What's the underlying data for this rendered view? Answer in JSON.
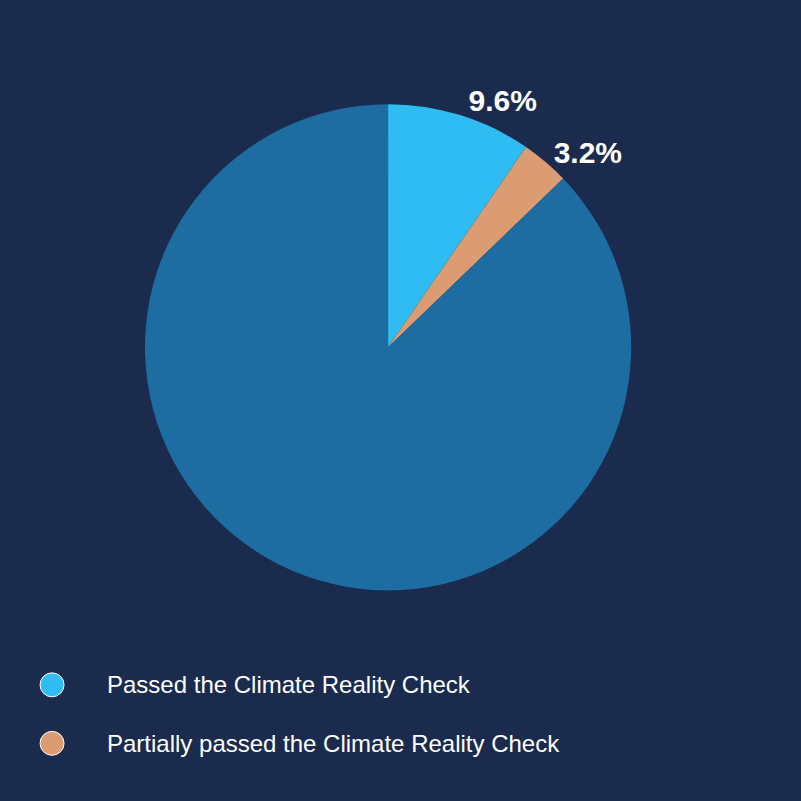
{
  "chart_data": {
    "type": "pie",
    "categories": [
      "Passed the Climate Reality Check",
      "Partially passed the Climate Reality Check",
      null
    ],
    "values": [
      9.6,
      3.2,
      87.2
    ],
    "value_labels": [
      "9.6%",
      "3.2%",
      null
    ],
    "colors": [
      "#2fbcf2",
      "#dc9c72",
      "#1d6da3"
    ],
    "data_labels": true,
    "legend": "bottom left"
  }
}
